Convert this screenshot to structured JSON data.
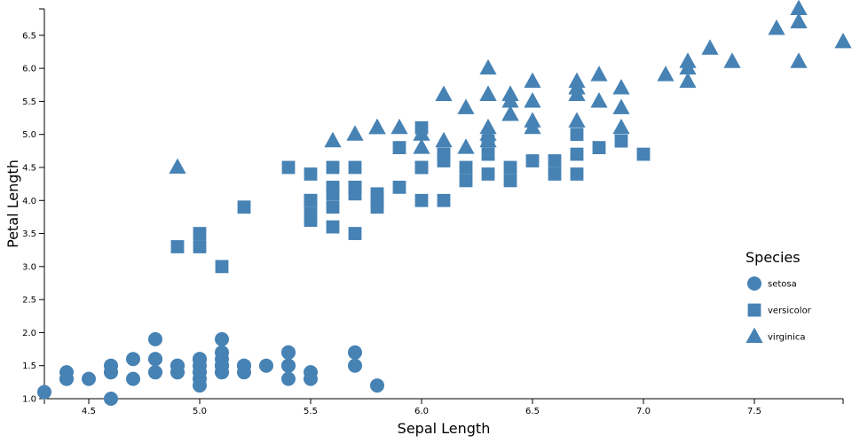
{
  "chart_data": {
    "type": "scatter",
    "xlabel": "Sepal Length",
    "ylabel": "Petal Length",
    "xlim": [
      4.3,
      7.9
    ],
    "ylim": [
      1.0,
      6.9
    ],
    "x_ticks": [
      "4.5",
      "5.0",
      "5.5",
      "6.0",
      "6.5",
      "7.0",
      "7.5"
    ],
    "y_ticks": [
      "1.0",
      "1.5",
      "2.0",
      "2.5",
      "3.0",
      "3.5",
      "4.0",
      "4.5",
      "5.0",
      "5.5",
      "6.0",
      "6.5"
    ],
    "legend_title": "Species",
    "legend_position": "right",
    "color": "#4682b4",
    "series": [
      {
        "name": "setosa",
        "marker": "circle",
        "points": [
          [
            5.1,
            1.4
          ],
          [
            4.9,
            1.4
          ],
          [
            4.7,
            1.3
          ],
          [
            4.6,
            1.5
          ],
          [
            5.0,
            1.4
          ],
          [
            5.4,
            1.7
          ],
          [
            4.6,
            1.4
          ],
          [
            5.0,
            1.5
          ],
          [
            4.4,
            1.4
          ],
          [
            4.9,
            1.5
          ],
          [
            5.4,
            1.5
          ],
          [
            4.8,
            1.6
          ],
          [
            4.8,
            1.4
          ],
          [
            4.3,
            1.1
          ],
          [
            5.8,
            1.2
          ],
          [
            5.7,
            1.5
          ],
          [
            5.4,
            1.3
          ],
          [
            5.1,
            1.4
          ],
          [
            5.7,
            1.7
          ],
          [
            5.1,
            1.5
          ],
          [
            5.4,
            1.7
          ],
          [
            5.1,
            1.5
          ],
          [
            4.6,
            1.0
          ],
          [
            5.1,
            1.7
          ],
          [
            4.8,
            1.9
          ],
          [
            5.0,
            1.6
          ],
          [
            5.0,
            1.6
          ],
          [
            5.2,
            1.5
          ],
          [
            5.2,
            1.4
          ],
          [
            4.7,
            1.6
          ],
          [
            4.8,
            1.6
          ],
          [
            5.4,
            1.5
          ],
          [
            5.2,
            1.5
          ],
          [
            5.5,
            1.4
          ],
          [
            4.9,
            1.5
          ],
          [
            5.0,
            1.2
          ],
          [
            5.5,
            1.3
          ],
          [
            4.9,
            1.4
          ],
          [
            4.4,
            1.3
          ],
          [
            5.1,
            1.5
          ],
          [
            5.0,
            1.3
          ],
          [
            4.5,
            1.3
          ],
          [
            4.4,
            1.3
          ],
          [
            5.0,
            1.6
          ],
          [
            5.1,
            1.9
          ],
          [
            4.8,
            1.4
          ],
          [
            5.1,
            1.6
          ],
          [
            4.6,
            1.4
          ],
          [
            5.3,
            1.5
          ],
          [
            5.0,
            1.4
          ]
        ]
      },
      {
        "name": "versicolor",
        "marker": "square",
        "points": [
          [
            7.0,
            4.7
          ],
          [
            6.4,
            4.5
          ],
          [
            6.9,
            4.9
          ],
          [
            5.5,
            4.0
          ],
          [
            6.5,
            4.6
          ],
          [
            5.7,
            4.5
          ],
          [
            6.3,
            4.7
          ],
          [
            4.9,
            3.3
          ],
          [
            6.6,
            4.6
          ],
          [
            5.2,
            3.9
          ],
          [
            5.0,
            3.5
          ],
          [
            5.9,
            4.2
          ],
          [
            6.0,
            4.0
          ],
          [
            6.1,
            4.7
          ],
          [
            5.6,
            3.6
          ],
          [
            6.7,
            4.4
          ],
          [
            5.6,
            4.5
          ],
          [
            5.8,
            4.1
          ],
          [
            6.2,
            4.5
          ],
          [
            5.6,
            3.9
          ],
          [
            5.9,
            4.8
          ],
          [
            6.1,
            4.0
          ],
          [
            6.3,
            4.9
          ],
          [
            6.1,
            4.7
          ],
          [
            6.4,
            4.3
          ],
          [
            6.6,
            4.4
          ],
          [
            6.8,
            4.8
          ],
          [
            6.7,
            5.0
          ],
          [
            6.0,
            4.5
          ],
          [
            5.7,
            3.5
          ],
          [
            5.5,
            3.8
          ],
          [
            5.5,
            3.7
          ],
          [
            5.8,
            3.9
          ],
          [
            6.0,
            5.1
          ],
          [
            5.4,
            4.5
          ],
          [
            6.0,
            4.5
          ],
          [
            6.7,
            4.7
          ],
          [
            6.3,
            4.4
          ],
          [
            5.6,
            4.1
          ],
          [
            5.5,
            4.0
          ],
          [
            5.5,
            4.4
          ],
          [
            6.1,
            4.6
          ],
          [
            5.8,
            4.0
          ],
          [
            5.0,
            3.3
          ],
          [
            5.6,
            4.2
          ],
          [
            5.7,
            4.2
          ],
          [
            5.7,
            4.2
          ],
          [
            6.2,
            4.3
          ],
          [
            5.1,
            3.0
          ],
          [
            5.7,
            4.1
          ]
        ]
      },
      {
        "name": "virginica",
        "marker": "triangle",
        "points": [
          [
            6.3,
            6.0
          ],
          [
            5.8,
            5.1
          ],
          [
            7.1,
            5.9
          ],
          [
            6.3,
            5.6
          ],
          [
            6.5,
            5.8
          ],
          [
            7.6,
            6.6
          ],
          [
            4.9,
            4.5
          ],
          [
            7.3,
            6.3
          ],
          [
            6.7,
            5.8
          ],
          [
            7.2,
            6.1
          ],
          [
            6.5,
            5.1
          ],
          [
            6.4,
            5.3
          ],
          [
            6.8,
            5.5
          ],
          [
            5.7,
            5.0
          ],
          [
            5.8,
            5.1
          ],
          [
            6.4,
            5.3
          ],
          [
            6.5,
            5.5
          ],
          [
            7.7,
            6.7
          ],
          [
            7.7,
            6.9
          ],
          [
            6.0,
            5.0
          ],
          [
            6.9,
            5.7
          ],
          [
            5.6,
            4.9
          ],
          [
            7.7,
            6.7
          ],
          [
            6.3,
            4.9
          ],
          [
            6.7,
            5.7
          ],
          [
            7.2,
            6.0
          ],
          [
            6.2,
            4.8
          ],
          [
            6.1,
            4.9
          ],
          [
            6.4,
            5.6
          ],
          [
            7.2,
            5.8
          ],
          [
            7.4,
            6.1
          ],
          [
            7.9,
            6.4
          ],
          [
            6.4,
            5.6
          ],
          [
            6.3,
            5.1
          ],
          [
            6.1,
            5.6
          ],
          [
            7.7,
            6.1
          ],
          [
            6.3,
            5.6
          ],
          [
            6.4,
            5.5
          ],
          [
            6.0,
            4.8
          ],
          [
            6.9,
            5.4
          ],
          [
            6.7,
            5.6
          ],
          [
            6.9,
            5.1
          ],
          [
            5.8,
            5.1
          ],
          [
            6.8,
            5.9
          ],
          [
            6.7,
            5.7
          ],
          [
            6.7,
            5.2
          ],
          [
            6.3,
            5.0
          ],
          [
            6.5,
            5.2
          ],
          [
            6.2,
            5.4
          ],
          [
            5.9,
            5.1
          ]
        ]
      }
    ]
  }
}
